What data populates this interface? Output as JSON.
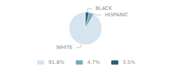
{
  "chart_data": {
    "type": "pie",
    "categories": [
      "WHITE",
      "HISPANIC",
      "BLACK"
    ],
    "values": [
      91.8,
      4.7,
      3.5
    ],
    "value_labels": [
      "91.8%",
      "4.7%",
      "3.5%"
    ],
    "colors": [
      "#d6e4f0",
      "#7aabbc",
      "#2e5f7a"
    ],
    "legend": "bottom"
  }
}
